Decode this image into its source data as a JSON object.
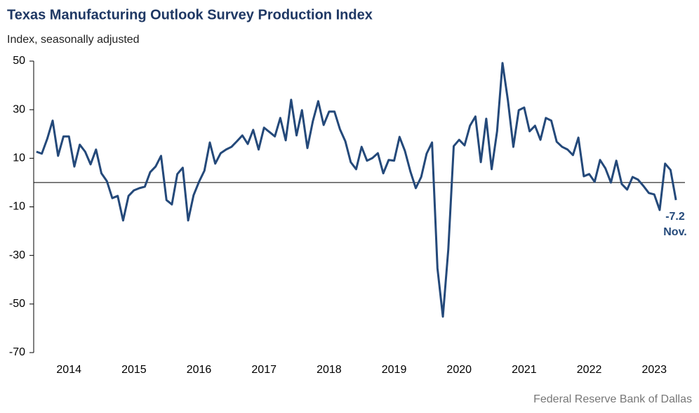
{
  "chart_data": {
    "type": "line",
    "title": "Texas Manufacturing Outlook Survey Production Index",
    "subtitle": "Index, seasonally adjusted",
    "source": "Federal Reserve Bank of Dallas",
    "annotations": [
      "-7.2",
      "Nov."
    ],
    "categories": [
      null,
      null,
      null,
      null,
      null,
      null,
      "2014",
      null,
      null,
      null,
      null,
      null,
      null,
      null,
      null,
      null,
      null,
      null,
      "2015",
      null,
      null,
      null,
      null,
      null,
      null,
      null,
      null,
      null,
      null,
      null,
      "2016",
      null,
      null,
      null,
      null,
      null,
      null,
      null,
      null,
      null,
      null,
      null,
      "2017",
      null,
      null,
      null,
      null,
      null,
      null,
      null,
      null,
      null,
      null,
      null,
      "2018",
      null,
      null,
      null,
      null,
      null,
      null,
      null,
      null,
      null,
      null,
      null,
      "2019",
      null,
      null,
      null,
      null,
      null,
      null,
      null,
      null,
      null,
      null,
      null,
      "2020",
      null,
      null,
      null,
      null,
      null,
      null,
      null,
      null,
      null,
      null,
      null,
      "2021",
      null,
      null,
      null,
      null,
      null,
      null,
      null,
      null,
      null,
      null,
      null,
      "2022",
      null,
      null,
      null,
      null,
      null,
      null,
      null,
      null,
      null,
      null,
      null,
      "2023",
      null,
      null,
      null,
      null
    ],
    "series": [
      {
        "color": "#24497a",
        "values": [
          12.7,
          11.9,
          18,
          25.5,
          11,
          19,
          19,
          6.6,
          15.6,
          12.7,
          7.5,
          13.6,
          3.8,
          0.6,
          -6.4,
          -5.5,
          -15.6,
          -5.5,
          -3.2,
          -2.3,
          -1.7,
          4.3,
          6.6,
          11,
          -7.2,
          -9,
          3.5,
          6.1,
          -15.6,
          -5.2,
          0.3,
          4.9,
          16.5,
          7.8,
          12.1,
          13.6,
          14.7,
          17,
          19.4,
          15.9,
          21.7,
          13.6,
          22.6,
          20.8,
          19,
          26.6,
          17.4,
          34.1,
          19.4,
          29.8,
          14.2,
          25.2,
          33.5,
          23.7,
          29.2,
          29.2,
          22,
          17,
          8.4,
          5.5,
          14.7,
          9,
          10.1,
          12.1,
          3.8,
          9.3,
          9,
          18.8,
          13,
          4.6,
          -2.3,
          2.3,
          11.9,
          16.5,
          -35.3,
          -55.2,
          -27.5,
          15,
          17.6,
          15.3,
          23.4,
          27.2,
          8.4,
          26.3,
          5.5,
          21.1,
          49.2,
          33.8,
          14.7,
          29.8,
          30.9,
          21.1,
          23.4,
          17.6,
          26.6,
          25.5,
          16.8,
          14.7,
          13.6,
          11.3,
          18.5,
          2.6,
          3.5,
          0.3,
          9.3,
          5.8,
          0,
          9,
          -0.6,
          -2.9,
          2.3,
          1.2,
          -1.4,
          -4.3,
          -4.9,
          -11.3,
          7.8,
          5.2,
          -7.2
        ]
      }
    ],
    "ylim": [
      -70,
      50
    ],
    "yticks": [
      50,
      30,
      10,
      -10,
      -30,
      -50,
      -70
    ]
  }
}
